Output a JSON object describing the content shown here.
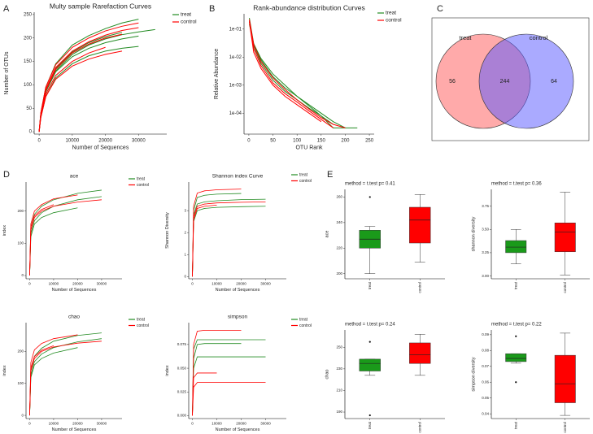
{
  "panels": [
    "A",
    "B",
    "C",
    "D",
    "E"
  ],
  "chart_data": [
    {
      "type": "line",
      "title": "Multy sample Rarefaction Curves",
      "x_label": "Number of Sequences",
      "y_label": "Number of OTUs",
      "x": [
        0,
        500,
        2000,
        5000,
        10000,
        15000,
        20000,
        25000,
        30000,
        35000
      ],
      "xlim": [
        -1500,
        38500
      ],
      "xticks": [
        0,
        10000,
        20000,
        30000
      ],
      "ylim": [
        -5,
        255
      ],
      "yticks": [
        0,
        50,
        100,
        150,
        200,
        250
      ],
      "series": [
        {
          "name": "treat",
          "color": "#228b22",
          "curves": [
            [
              0,
              40,
              95,
              145,
              185,
              205,
              220,
              232,
              240,
              null
            ],
            [
              0,
              35,
              85,
              130,
              165,
              185,
              198,
              207,
              213,
              218
            ],
            [
              0,
              38,
              90,
              135,
              170,
              190,
              203,
              212,
              null,
              null
            ],
            [
              0,
              30,
              75,
              115,
              145,
              162,
              172,
              178,
              182,
              null
            ],
            [
              0,
              35,
              85,
              128,
              160,
              178,
              190,
              198,
              204,
              null
            ]
          ]
        },
        {
          "name": "control",
          "color": "#ff0000",
          "curves": [
            [
              0,
              40,
              95,
              143,
              180,
              200,
              215,
              225,
              232,
              null
            ],
            [
              0,
              36,
              88,
              133,
              168,
              187,
              200,
              208,
              null,
              null
            ],
            [
              0,
              32,
              80,
              120,
              150,
              168,
              180,
              null,
              null,
              null
            ],
            [
              0,
              38,
              90,
              137,
              172,
              192,
              206,
              216,
              222,
              null
            ],
            [
              0,
              30,
              75,
              112,
              140,
              155,
              165,
              172,
              null,
              null
            ]
          ]
        }
      ]
    },
    {
      "type": "line",
      "title": "Rank-abundance distribution Curves",
      "x_label": "OTU Rank",
      "y_label": "Relative Abundance",
      "log_y": true,
      "x": [
        1,
        10,
        25,
        50,
        75,
        100,
        125,
        150,
        175,
        200,
        225
      ],
      "xlim": [
        -10,
        260
      ],
      "xticks": [
        0,
        50,
        100,
        150,
        200,
        250
      ],
      "ylim": [
        1.8e-05,
        0.35
      ],
      "yticks": [
        {
          "value": 0.0001,
          "label": "1e-04"
        },
        {
          "value": 0.001,
          "label": "1e-03"
        },
        {
          "value": 0.01,
          "label": "1e-02"
        },
        {
          "value": 0.1,
          "label": "1e-01"
        }
      ],
      "series": [
        {
          "name": "treat",
          "color": "#228b22",
          "curves": [
            [
              0.25,
              0.03,
              0.008,
              0.002,
              0.0008,
              0.0004,
              0.0002,
              0.0001,
              5e-05,
              3e-05,
              null
            ],
            [
              0.2,
              0.025,
              0.006,
              0.0015,
              0.0006,
              0.0003,
              0.00015,
              8e-05,
              4e-05,
              null,
              null
            ],
            [
              0.15,
              0.03,
              0.009,
              0.0025,
              0.001,
              0.0004,
              0.00018,
              8e-05,
              3e-05,
              3e-05,
              3e-05
            ]
          ]
        },
        {
          "name": "control",
          "color": "#ff0000",
          "curves": [
            [
              0.2,
              0.02,
              0.005,
              0.0012,
              0.0005,
              0.00025,
              0.00012,
              6e-05,
              3e-05,
              null,
              null
            ],
            [
              0.22,
              0.028,
              0.007,
              0.0018,
              0.0007,
              0.0003,
              0.00014,
              7e-05,
              4e-05,
              3e-05,
              null
            ],
            [
              0.18,
              0.015,
              0.004,
              0.001,
              0.0004,
              0.0002,
              0.0001,
              5e-05,
              null,
              null,
              null
            ]
          ]
        }
      ]
    },
    {
      "type": "venn",
      "sets": [
        {
          "name": "treat",
          "color": "#ff5555"
        },
        {
          "name": "control",
          "color": "#5555ff"
        }
      ],
      "values": [
        56,
        244,
        64
      ]
    },
    {
      "type": "line",
      "title": "ace",
      "x_label": "Number of Sequences",
      "y_label": "index",
      "x": [
        0,
        500,
        2000,
        5000,
        10000,
        20000,
        30000
      ],
      "xlim": [
        -1500,
        38500
      ],
      "xticks": [
        0,
        10000,
        20000,
        30000
      ],
      "ylim": [
        -10,
        290
      ],
      "yticks": [
        0,
        100,
        200
      ],
      "series": [
        {
          "name": "treat",
          "color": "#228b22",
          "curves": [
            [
              0,
              150,
              190,
              215,
              235,
              255,
              265
            ],
            [
              0,
              130,
              170,
              195,
              215,
              235,
              245
            ],
            [
              0,
              120,
              160,
              180,
              195,
              210,
              null
            ]
          ]
        },
        {
          "name": "control",
          "color": "#ff0000",
          "curves": [
            [
              0,
              160,
              200,
              220,
              238,
              250,
              null
            ],
            [
              0,
              140,
              180,
              200,
              215,
              228,
              235
            ],
            [
              0,
              150,
              185,
              205,
              220,
              null,
              null
            ]
          ]
        }
      ]
    },
    {
      "type": "line",
      "title": "Shannon index Curve",
      "x_label": "Number of Sequences",
      "y_label": "Shannon Diversity",
      "x": [
        0,
        500,
        2000,
        5000,
        10000,
        20000,
        30000
      ],
      "xlim": [
        -1500,
        38500
      ],
      "xticks": [
        0,
        10000,
        20000,
        30000
      ],
      "ylim": [
        -0.1,
        4.3
      ],
      "yticks": [
        0,
        1,
        2,
        3
      ],
      "series": [
        {
          "name": "treat",
          "color": "#228b22",
          "curves": [
            [
              0,
              2.8,
              3.3,
              3.4,
              3.45,
              3.5,
              3.52
            ],
            [
              0,
              2.5,
              3.0,
              3.1,
              3.15,
              3.18,
              3.2
            ],
            [
              0,
              3,
              3.6,
              3.7,
              3.75,
              3.78,
              null
            ]
          ]
        },
        {
          "name": "control",
          "color": "#ff0000",
          "curves": [
            [
              0,
              3.2,
              3.8,
              3.9,
              3.95,
              3.98,
              null
            ],
            [
              0,
              2.7,
              3.2,
              3.3,
              3.35,
              3.38,
              3.4
            ],
            [
              0,
              2.6,
              3.1,
              3.2,
              3.25,
              null,
              null
            ]
          ]
        }
      ]
    },
    {
      "type": "line",
      "title": "chao",
      "x_label": "Number of Sequences",
      "y_label": "index",
      "x": [
        0,
        500,
        2000,
        5000,
        10000,
        20000,
        30000
      ],
      "xlim": [
        -1500,
        38500
      ],
      "xticks": [
        0,
        10000,
        20000,
        30000
      ],
      "ylim": [
        -10,
        290
      ],
      "yticks": [
        0,
        100,
        200
      ],
      "series": [
        {
          "name": "treat",
          "color": "#228b22",
          "curves": [
            [
              0,
              140,
              185,
              210,
              232,
              250,
              258
            ],
            [
              0,
              125,
              168,
              192,
              212,
              230,
              240
            ],
            [
              0,
              118,
              158,
              178,
              195,
              212,
              null
            ]
          ]
        },
        {
          "name": "control",
          "color": "#ff0000",
          "curves": [
            [
              0,
              165,
              205,
              225,
              240,
              252,
              null
            ],
            [
              0,
              138,
              178,
              200,
              214,
              226,
              232
            ],
            [
              0,
              148,
              184,
              204,
              218,
              null,
              null
            ]
          ]
        }
      ]
    },
    {
      "type": "line",
      "title": "simpson",
      "x_label": "Number of Sequences",
      "y_label": "index",
      "x": [
        0,
        500,
        2000,
        5000,
        10000,
        20000,
        30000
      ],
      "xlim": [
        -1500,
        38500
      ],
      "xticks": [
        0,
        10000,
        20000,
        30000
      ],
      "ylim": [
        -0.003,
        0.098
      ],
      "yticks": [
        {
          "value": 0,
          "label": "0.000"
        },
        0.025,
        {
          "value": 0.05,
          "label": "0.050"
        },
        0.075
      ],
      "series": [
        {
          "name": "treat",
          "color": "#228b22",
          "curves": [
            [
              0,
              0.07,
              0.08,
              0.08,
              0.08,
              0.08,
              0.08
            ],
            [
              0,
              0.05,
              0.062,
              0.062,
              0.062,
              0.062,
              0.062
            ],
            [
              0,
              0.06,
              0.075,
              0.076,
              0.076,
              0.076,
              null
            ]
          ]
        },
        {
          "name": "control",
          "color": "#ff0000",
          "curves": [
            [
              0,
              0.075,
              0.089,
              0.09,
              0.09,
              0.09,
              null
            ],
            [
              0,
              0.03,
              0.035,
              0.035,
              0.035,
              0.035,
              0.035
            ],
            [
              0,
              0.04,
              0.045,
              0.045,
              0.045,
              null,
              null
            ]
          ]
        }
      ]
    },
    {
      "type": "box",
      "title": "method = t.test  p= 0.41",
      "y_label": "ace",
      "categories": [
        "treat",
        "control"
      ],
      "colors": [
        "#1a9a1a",
        "#ff0000"
      ],
      "ylim": [
        196,
        266
      ],
      "yticks": [
        200,
        220,
        240,
        260
      ],
      "boxes": [
        {
          "min": 200,
          "q1": 220,
          "median": 227,
          "q3": 234,
          "max": 237,
          "outliers": [
            260
          ]
        },
        {
          "min": 209,
          "q1": 224,
          "median": 242,
          "q3": 252,
          "max": 262,
          "outliers": []
        }
      ]
    },
    {
      "type": "box",
      "title": "method = t.test  p= 0.36",
      "y_label": "shannon diversity",
      "categories": [
        "treat",
        "control"
      ],
      "colors": [
        "#1a9a1a",
        "#ff0000"
      ],
      "ylim": [
        2.97,
        3.93
      ],
      "yticks": [
        {
          "value": 3,
          "label": "3.00"
        },
        3.25,
        {
          "value": 3.5,
          "label": "3.50"
        },
        3.75
      ],
      "boxes": [
        {
          "min": 3.13,
          "q1": 3.25,
          "median": 3.31,
          "q3": 3.38,
          "max": 3.5,
          "outliers": []
        },
        {
          "min": 3.01,
          "q1": 3.26,
          "median": 3.47,
          "q3": 3.57,
          "max": 3.9,
          "outliers": []
        }
      ]
    },
    {
      "type": "box",
      "title": "method = t.test  p= 0.24",
      "y_label": "chao",
      "categories": [
        "treat",
        "control"
      ],
      "colors": [
        "#1a9a1a",
        "#ff0000"
      ],
      "ylim": [
        184,
        266
      ],
      "yticks": [
        190,
        210,
        230,
        250
      ],
      "boxes": [
        {
          "min": 224,
          "q1": 228,
          "median": 235,
          "q3": 239,
          "max": 239,
          "outliers": [
            255,
            187
          ]
        },
        {
          "min": 224,
          "q1": 235,
          "median": 243,
          "q3": 254,
          "max": 262,
          "outliers": []
        }
      ]
    },
    {
      "type": "box",
      "title": "method = t.test  p= 0.22",
      "y_label": "simpson diversity",
      "categories": [
        "treat",
        "control"
      ],
      "colors": [
        "#1a9a1a",
        "#ff0000"
      ],
      "ylim": [
        0.037,
        0.093
      ],
      "yticks": [
        0.04,
        0.05,
        0.06,
        0.07,
        0.08,
        0.09
      ],
      "boxes": [
        {
          "min": 0.072,
          "q1": 0.073,
          "median": 0.075,
          "q3": 0.078,
          "max": 0.078,
          "outliers": [
            0.089,
            0.06
          ]
        },
        {
          "min": 0.039,
          "q1": 0.047,
          "median": 0.059,
          "q3": 0.077,
          "max": 0.091,
          "outliers": []
        }
      ]
    }
  ]
}
